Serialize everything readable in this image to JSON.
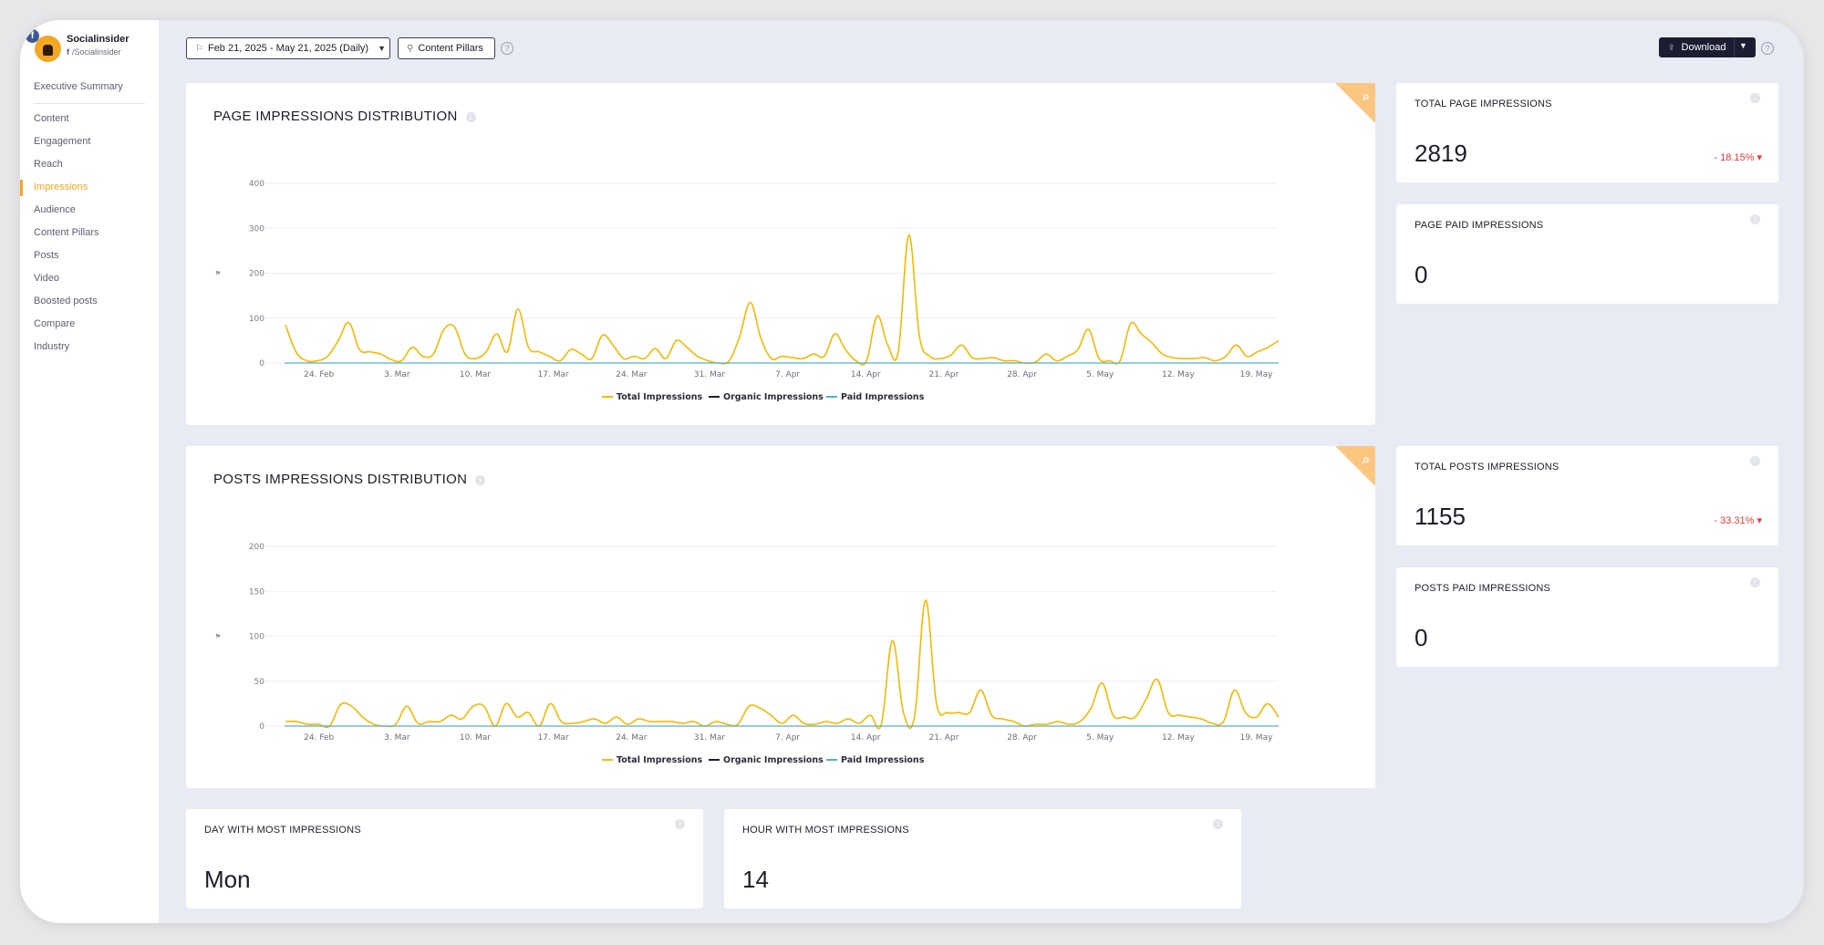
{
  "brand": {
    "name": "Socialinsider",
    "handle": "/Socialinsider",
    "network_badge": "f"
  },
  "nav": {
    "items": [
      {
        "label": "Executive Summary"
      },
      {
        "label": "Content"
      },
      {
        "label": "Engagement"
      },
      {
        "label": "Reach"
      },
      {
        "label": "Impressions",
        "active": true
      },
      {
        "label": "Audience"
      },
      {
        "label": "Content Pillars"
      },
      {
        "label": "Posts"
      },
      {
        "label": "Video"
      },
      {
        "label": "Boosted posts"
      },
      {
        "label": "Compare"
      },
      {
        "label": "Industry"
      }
    ]
  },
  "toolbar": {
    "date_range": "Feb 21, 2025 - May 21, 2025 (Daily)",
    "content_pillars": "Content Pillars",
    "download": "Download",
    "help": "?"
  },
  "icons": {
    "calendar": "flag-icon",
    "pillars": "pillar-icon",
    "zoom": "search-icon",
    "info": "info-icon",
    "download": "export-icon",
    "caret": "caret-down-icon"
  },
  "colors": {
    "accent": "#f5a623",
    "total": "#f5b800",
    "organic": "#1b1d31",
    "paid": "#4fb3c7",
    "negative": "#e53935",
    "download_bg": "#1b1d31"
  },
  "page_chart": {
    "title": "PAGE IMPRESSIONS DISTRIBUTION",
    "y_label_glyph": "⚑"
  },
  "posts_chart": {
    "title": "POSTS IMPRESSIONS DISTRIBUTION",
    "y_label_glyph": "⚑"
  },
  "stats": {
    "total_page": {
      "label": "TOTAL PAGE IMPRESSIONS",
      "value": "2819",
      "change": "- 18.15% ▾"
    },
    "page_paid": {
      "label": "PAGE PAID IMPRESSIONS",
      "value": "0"
    },
    "total_posts": {
      "label": "TOTAL POSTS IMPRESSIONS",
      "value": "1155",
      "change": "- 33.31% ▾"
    },
    "posts_paid": {
      "label": "POSTS PAID IMPRESSIONS",
      "value": "0"
    },
    "day_most": {
      "label": "DAY WITH MOST IMPRESSIONS",
      "value": "Mon"
    },
    "hour_most": {
      "label": "HOUR WITH MOST IMPRESSIONS",
      "value": "14"
    }
  },
  "chart_data": [
    {
      "type": "line",
      "title": "PAGE IMPRESSIONS DISTRIBUTION",
      "xlabel": "",
      "ylabel": "",
      "x_tick_labels": [
        "24. Feb",
        "3. Mar",
        "10. Mar",
        "17. Mar",
        "24. Mar",
        "31. Mar",
        "7. Apr",
        "14. Apr",
        "21. Apr",
        "28. Apr",
        "5. May",
        "12. May",
        "19. May"
      ],
      "y_ticks": [
        0,
        100,
        200,
        300,
        400
      ],
      "ylim": [
        0,
        400
      ],
      "grid": true,
      "legend": "bottom",
      "x_start": "2025-02-21",
      "x_end": "2025-05-21",
      "series": [
        {
          "name": "Total Impressions",
          "values": [
            85,
            25,
            5,
            5,
            15,
            50,
            90,
            30,
            25,
            20,
            8,
            5,
            35,
            15,
            20,
            75,
            80,
            20,
            10,
            25,
            65,
            25,
            120,
            35,
            25,
            15,
            5,
            30,
            20,
            10,
            62,
            40,
            10,
            15,
            10,
            32,
            10,
            50,
            35,
            15,
            5,
            0,
            5,
            60,
            135,
            55,
            10,
            15,
            12,
            10,
            20,
            15,
            65,
            30,
            5,
            5,
            105,
            40,
            25,
            285,
            60,
            15,
            10,
            18,
            40,
            12,
            10,
            12,
            5,
            5,
            0,
            2,
            20,
            5,
            15,
            30,
            75,
            10,
            5,
            5,
            88,
            65,
            45,
            20,
            12,
            10,
            10,
            12,
            5,
            15,
            40,
            15,
            25,
            35,
            50
          ]
        },
        {
          "name": "Organic Impressions",
          "values": []
        },
        {
          "name": "Paid Impressions",
          "values": []
        }
      ]
    },
    {
      "type": "line",
      "title": "POSTS IMPRESSIONS DISTRIBUTION",
      "xlabel": "",
      "ylabel": "",
      "x_tick_labels": [
        "24. Feb",
        "3. Mar",
        "10. Mar",
        "17. Mar",
        "24. Mar",
        "31. Mar",
        "7. Apr",
        "14. Apr",
        "21. Apr",
        "28. Apr",
        "5. May",
        "12. May",
        "19. May"
      ],
      "y_ticks": [
        0,
        50,
        100,
        150,
        200
      ],
      "ylim": [
        0,
        200
      ],
      "grid": true,
      "legend": "bottom",
      "x_start": "2025-02-21",
      "x_end": "2025-05-21",
      "series": [
        {
          "name": "Total Impressions",
          "values": [
            5,
            5,
            2,
            2,
            0,
            24,
            22,
            10,
            2,
            0,
            2,
            22,
            3,
            5,
            5,
            12,
            8,
            22,
            22,
            0,
            25,
            10,
            15,
            0,
            25,
            5,
            3,
            5,
            8,
            3,
            10,
            2,
            8,
            5,
            5,
            5,
            3,
            5,
            0,
            5,
            2,
            2,
            22,
            20,
            12,
            3,
            12,
            3,
            2,
            5,
            3,
            8,
            3,
            12,
            2,
            95,
            15,
            10,
            140,
            25,
            15,
            15,
            15,
            40,
            12,
            8,
            5,
            0,
            2,
            2,
            5,
            2,
            5,
            20,
            48,
            12,
            10,
            10,
            30,
            52,
            15,
            12,
            10,
            8,
            3,
            5,
            40,
            15,
            10,
            25,
            10
          ]
        },
        {
          "name": "Organic Impressions",
          "values": []
        },
        {
          "name": "Paid Impressions",
          "values": []
        }
      ]
    }
  ]
}
